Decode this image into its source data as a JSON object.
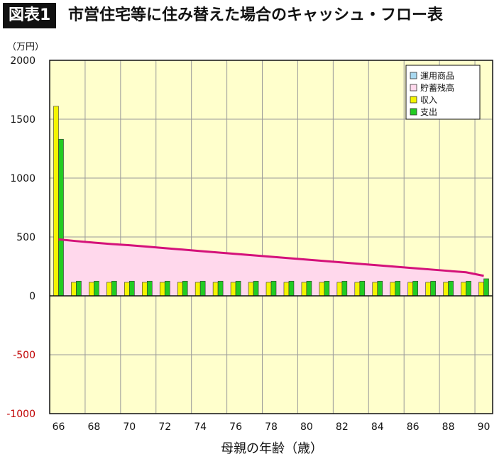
{
  "header": {
    "figure_label": "図表1",
    "title": "市営住宅等に住み替えた場合のキャッシュ・フロー表"
  },
  "chart_data": {
    "type": "bar",
    "title": "市営住宅等に住み替えた場合のキャッシュ・フロー表",
    "xlabel": "母親の年齢（歳）",
    "ylabel": "（万円）",
    "ylim": [
      -1000,
      2000
    ],
    "yticks": [
      2000,
      1500,
      1000,
      500,
      0,
      -500,
      -1000
    ],
    "ytick_labels": [
      "2000",
      "1500",
      "1000",
      "500",
      "0",
      "-500",
      "-1000"
    ],
    "x": [
      66,
      67,
      68,
      69,
      70,
      71,
      72,
      73,
      74,
      75,
      76,
      77,
      78,
      79,
      80,
      81,
      82,
      83,
      84,
      85,
      86,
      87,
      88,
      89,
      90
    ],
    "xtick_labels": [
      "66",
      "68",
      "70",
      "72",
      "74",
      "76",
      "78",
      "80",
      "82",
      "84",
      "86",
      "88",
      "90"
    ],
    "grid": true,
    "legend_position": "top-right",
    "series": [
      {
        "name": "運用商品",
        "kind": "bar",
        "color": "#a8d8f0",
        "values": [
          0,
          0,
          0,
          0,
          0,
          0,
          0,
          0,
          0,
          0,
          0,
          0,
          0,
          0,
          0,
          0,
          0,
          0,
          0,
          0,
          0,
          0,
          0,
          0,
          0
        ]
      },
      {
        "name": "貯蓄残高",
        "kind": "area",
        "color": "#ffd8ec",
        "line_color": "#d4127a",
        "values": [
          480,
          465,
          452,
          440,
          430,
          418,
          405,
          393,
          380,
          368,
          356,
          344,
          332,
          320,
          308,
          296,
          284,
          272,
          260,
          248,
          236,
          224,
          212,
          200,
          170
        ]
      },
      {
        "name": "収入",
        "kind": "bar",
        "color": "#f4f400",
        "values": [
          1610,
          115,
          115,
          115,
          115,
          115,
          115,
          115,
          115,
          115,
          115,
          115,
          115,
          115,
          115,
          115,
          115,
          115,
          115,
          115,
          115,
          115,
          115,
          115,
          115
        ]
      },
      {
        "name": "支出",
        "kind": "bar",
        "color": "#22cc22",
        "values": [
          1330,
          125,
          125,
          125,
          125,
          125,
          125,
          125,
          125,
          125,
          125,
          125,
          125,
          125,
          125,
          125,
          125,
          125,
          125,
          125,
          125,
          125,
          125,
          125,
          145
        ]
      }
    ]
  }
}
